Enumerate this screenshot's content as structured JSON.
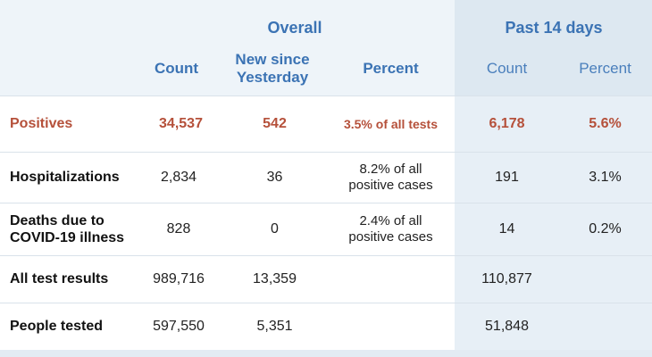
{
  "header": {
    "overall": "Overall",
    "past14": "Past 14 days",
    "overall_count": "Count",
    "overall_new": "New since\nYesterday",
    "overall_percent": "Percent",
    "past_count": "Count",
    "past_percent": "Percent"
  },
  "rows": [
    {
      "label": "Positives",
      "count": "34,537",
      "new": "542",
      "percent": "3.5% of all tests",
      "past_count": "6,178",
      "past_percent": "5.6%"
    },
    {
      "label": "Hospitalizations",
      "count": "2,834",
      "new": "36",
      "percent": "8.2% of all\npositive cases",
      "past_count": "191",
      "past_percent": "3.1%"
    },
    {
      "label": "Deaths due to\nCOVID-19 illness",
      "count": "828",
      "new": "0",
      "percent": "2.4% of all\npositive cases",
      "past_count": "14",
      "past_percent": "0.2%"
    },
    {
      "label": "All test results",
      "count": "989,716",
      "new": "13,359",
      "percent": "",
      "past_count": "110,877",
      "past_percent": ""
    },
    {
      "label": "People tested",
      "count": "597,550",
      "new": "5,351",
      "percent": "",
      "past_count": "51,848",
      "past_percent": ""
    }
  ],
  "colors": {
    "header_text": "#3b73b4",
    "positives_text": "#b5503a",
    "past14_band": "#e7eff6"
  }
}
